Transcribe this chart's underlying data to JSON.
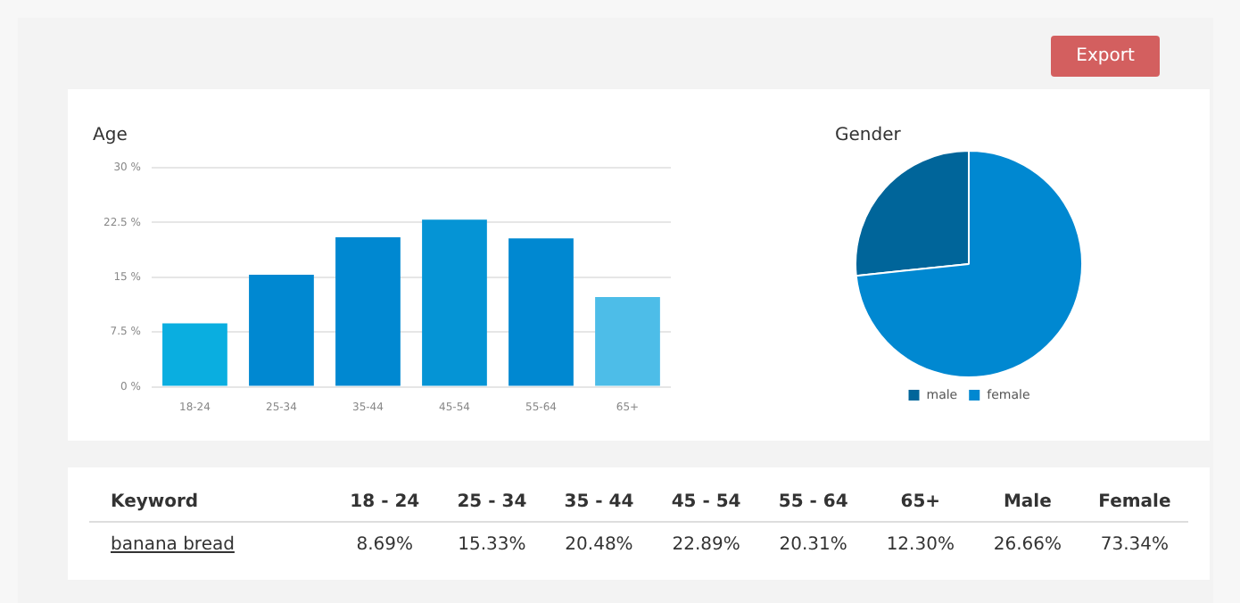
{
  "chart_data": [
    {
      "type": "bar",
      "title": "Age",
      "categories": [
        "18-24",
        "25-34",
        "35-44",
        "45-54",
        "55-64",
        "65+"
      ],
      "values": [
        8.69,
        15.33,
        20.48,
        22.89,
        20.31,
        12.3
      ],
      "colors": [
        "#0aaee0",
        "#0088d1",
        "#0088d1",
        "#0594d5",
        "#0088d1",
        "#4dbde8"
      ],
      "value_labels": [
        "8.69%",
        "15.33%",
        "20.48%",
        "22.89%",
        "20.31%",
        "12.30%"
      ],
      "ylim": [
        0,
        30
      ],
      "yticks": [
        {
          "value": 0,
          "label": "0 %"
        },
        {
          "value": 7.5,
          "label": "7.5 %"
        },
        {
          "value": 15,
          "label": "15 %"
        },
        {
          "value": 22.5,
          "label": "22.5 %"
        },
        {
          "value": 30,
          "label": "30 %"
        }
      ],
      "grid": "y",
      "legend": false
    },
    {
      "type": "pie",
      "title": "Gender",
      "categories": [
        "male",
        "female"
      ],
      "values": [
        26.66,
        73.34
      ],
      "colors": [
        "#00659a",
        "#0088d1"
      ],
      "value_labels": [
        "26.66%",
        "73.34%"
      ],
      "legend": "bottom"
    },
    {
      "type": "other",
      "title": "Keyword",
      "categories": [
        "18 - 24",
        "25 - 34",
        "35 - 44",
        "45 - 54",
        "55 - 64",
        "65+",
        "Male",
        "Female"
      ],
      "annotations": [
        "banana bread",
        "Export"
      ]
    }
  ]
}
